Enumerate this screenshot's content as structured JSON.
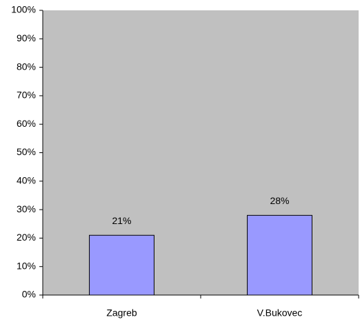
{
  "chart_data": {
    "type": "bar",
    "categories": [
      "Zagreb",
      "V.Bukovec"
    ],
    "values": [
      21,
      28
    ],
    "value_labels": [
      "21%",
      "28%"
    ],
    "color": "#9999ff",
    "plot_background": "#c0c0c0",
    "ylim": [
      0,
      100
    ],
    "yticks": [
      {
        "value": 0,
        "label": "0%"
      },
      {
        "value": 10,
        "label": "10%"
      },
      {
        "value": 20,
        "label": "20%"
      },
      {
        "value": 30,
        "label": "30%"
      },
      {
        "value": 40,
        "label": "40%"
      },
      {
        "value": 50,
        "label": "50%"
      },
      {
        "value": 60,
        "label": "60%"
      },
      {
        "value": 70,
        "label": "70%"
      },
      {
        "value": 80,
        "label": "80%"
      },
      {
        "value": 90,
        "label": "90%"
      },
      {
        "value": 100,
        "label": "100%"
      }
    ],
    "grid": false
  }
}
